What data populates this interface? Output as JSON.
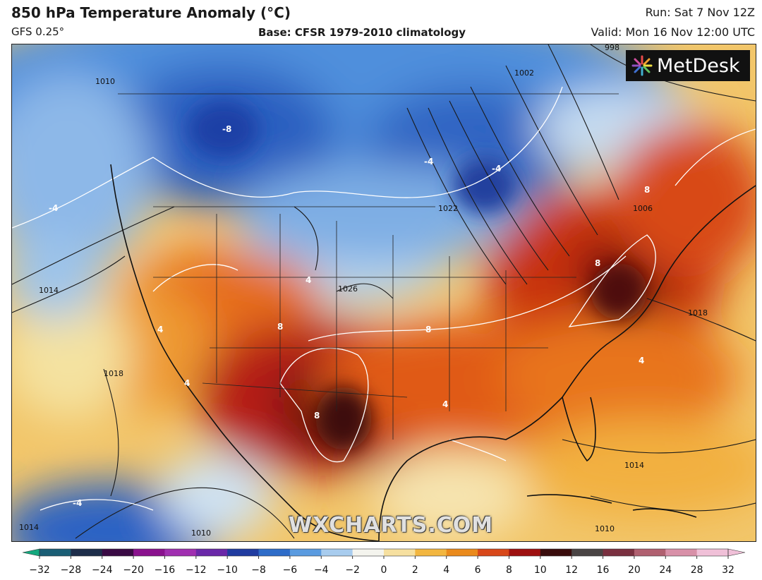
{
  "header": {
    "title": "850 hPa Temperature Anomaly (°C)",
    "model": "GFS 0.25°",
    "base": "Base: CFSR 1979-2010 climatology",
    "run": "Run: Sat 7 Nov 12Z",
    "valid": "Valid: Mon 16 Nov 12:00 UTC"
  },
  "logo": {
    "text": "MetDesk",
    "icon": "metdesk-starburst-icon"
  },
  "watermark": "WXCHARTS.COM",
  "isobar_labels": [
    "1010",
    "1014",
    "1018",
    "1022",
    "1026",
    "1002",
    "998",
    "1006"
  ],
  "anomaly_labels": [
    "-8",
    "-4",
    "4",
    "8"
  ],
  "colorbar": {
    "ticks": [
      "−32",
      "−28",
      "−24",
      "−20",
      "−16",
      "−12",
      "−10",
      "−8",
      "−6",
      "−4",
      "−2",
      "0",
      "2",
      "4",
      "6",
      "8",
      "10",
      "12",
      "16",
      "20",
      "24",
      "28",
      "32"
    ],
    "colors": [
      "#14a87e",
      "#1a5e75",
      "#1d2d4a",
      "#3a0a44",
      "#8a128e",
      "#a02fb0",
      "#6a28a8",
      "#203ca0",
      "#2e6cc8",
      "#5a9be0",
      "#a8ccee",
      "#f4f4ee",
      "#f6e0a0",
      "#f2b640",
      "#ea8a1c",
      "#d8481a",
      "#9e1010",
      "#3a0c0c",
      "#4a4444",
      "#7a3040",
      "#b06070",
      "#d890a8",
      "#f0c0d8"
    ]
  }
}
